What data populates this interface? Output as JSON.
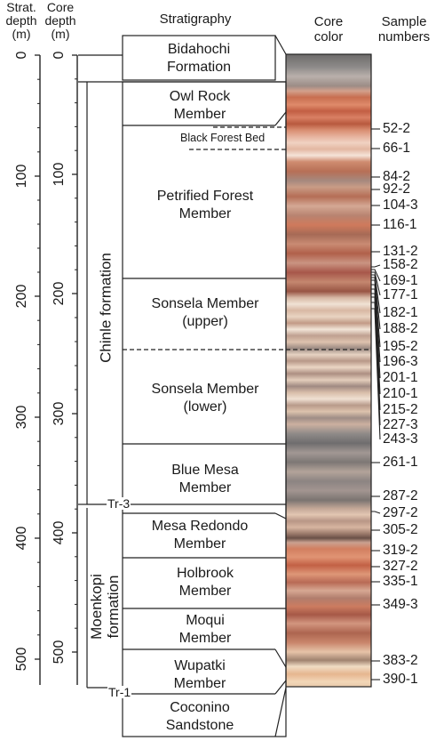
{
  "headers": {
    "strat_depth": [
      "Strat.",
      "depth",
      "(m)"
    ],
    "core_depth": [
      "Core",
      "depth",
      "(m)"
    ],
    "stratigraphy": "Stratigraphy",
    "core_color": [
      "Core",
      "color"
    ],
    "sample_numbers": [
      "Sample",
      "numbers"
    ]
  },
  "strat_ticks": [
    "0",
    "100",
    "200",
    "300",
    "400",
    "500"
  ],
  "core_ticks": [
    "0",
    "100",
    "200",
    "300",
    "400",
    "500"
  ],
  "formations": {
    "chinle": "Chinle formation",
    "moenkopi": "Moenkopi formation"
  },
  "unconformities": {
    "tr3": "Tr-3",
    "tr1": "Tr-1"
  },
  "members": [
    {
      "lines": [
        "Bidahochi",
        "Formation"
      ]
    },
    {
      "lines": [
        "Owl Rock",
        "Member"
      ]
    },
    {
      "lines": [
        "Black Forest Bed"
      ]
    },
    {
      "lines": [
        "Petrified Forest",
        "Member"
      ]
    },
    {
      "lines": [
        "Sonsela Member",
        "(upper)"
      ]
    },
    {
      "lines": [
        "Sonsela Member",
        "(lower)"
      ]
    },
    {
      "lines": [
        "Blue Mesa",
        "Member"
      ]
    },
    {
      "lines": [
        "Mesa Redondo",
        "Member"
      ]
    },
    {
      "lines": [
        "Holbrook",
        "Member"
      ]
    },
    {
      "lines": [
        "Moqui",
        "Member"
      ]
    },
    {
      "lines": [
        "Wupatki",
        "Member"
      ]
    },
    {
      "lines": [
        "Coconino",
        "Sandstone"
      ]
    }
  ],
  "samples": [
    "52-2",
    "66-1",
    "84-2",
    "92-2",
    "104-3",
    "116-1",
    "131-2",
    "158-2",
    "169-1",
    "177-1",
    "182-1",
    "188-2",
    "195-2",
    "196-3",
    "201-1",
    "210-1",
    "215-2",
    "227-3",
    "243-3",
    "261-1",
    "287-2",
    "297-2",
    "305-2",
    "319-2",
    "327-2",
    "335-1",
    "349-3",
    "383-2",
    "390-1"
  ],
  "colors": {
    "line": "#1a1a1a",
    "core_reddish": "#c9704f",
    "core_pale": "#e8d3bf",
    "core_gray": "#8a8684"
  }
}
